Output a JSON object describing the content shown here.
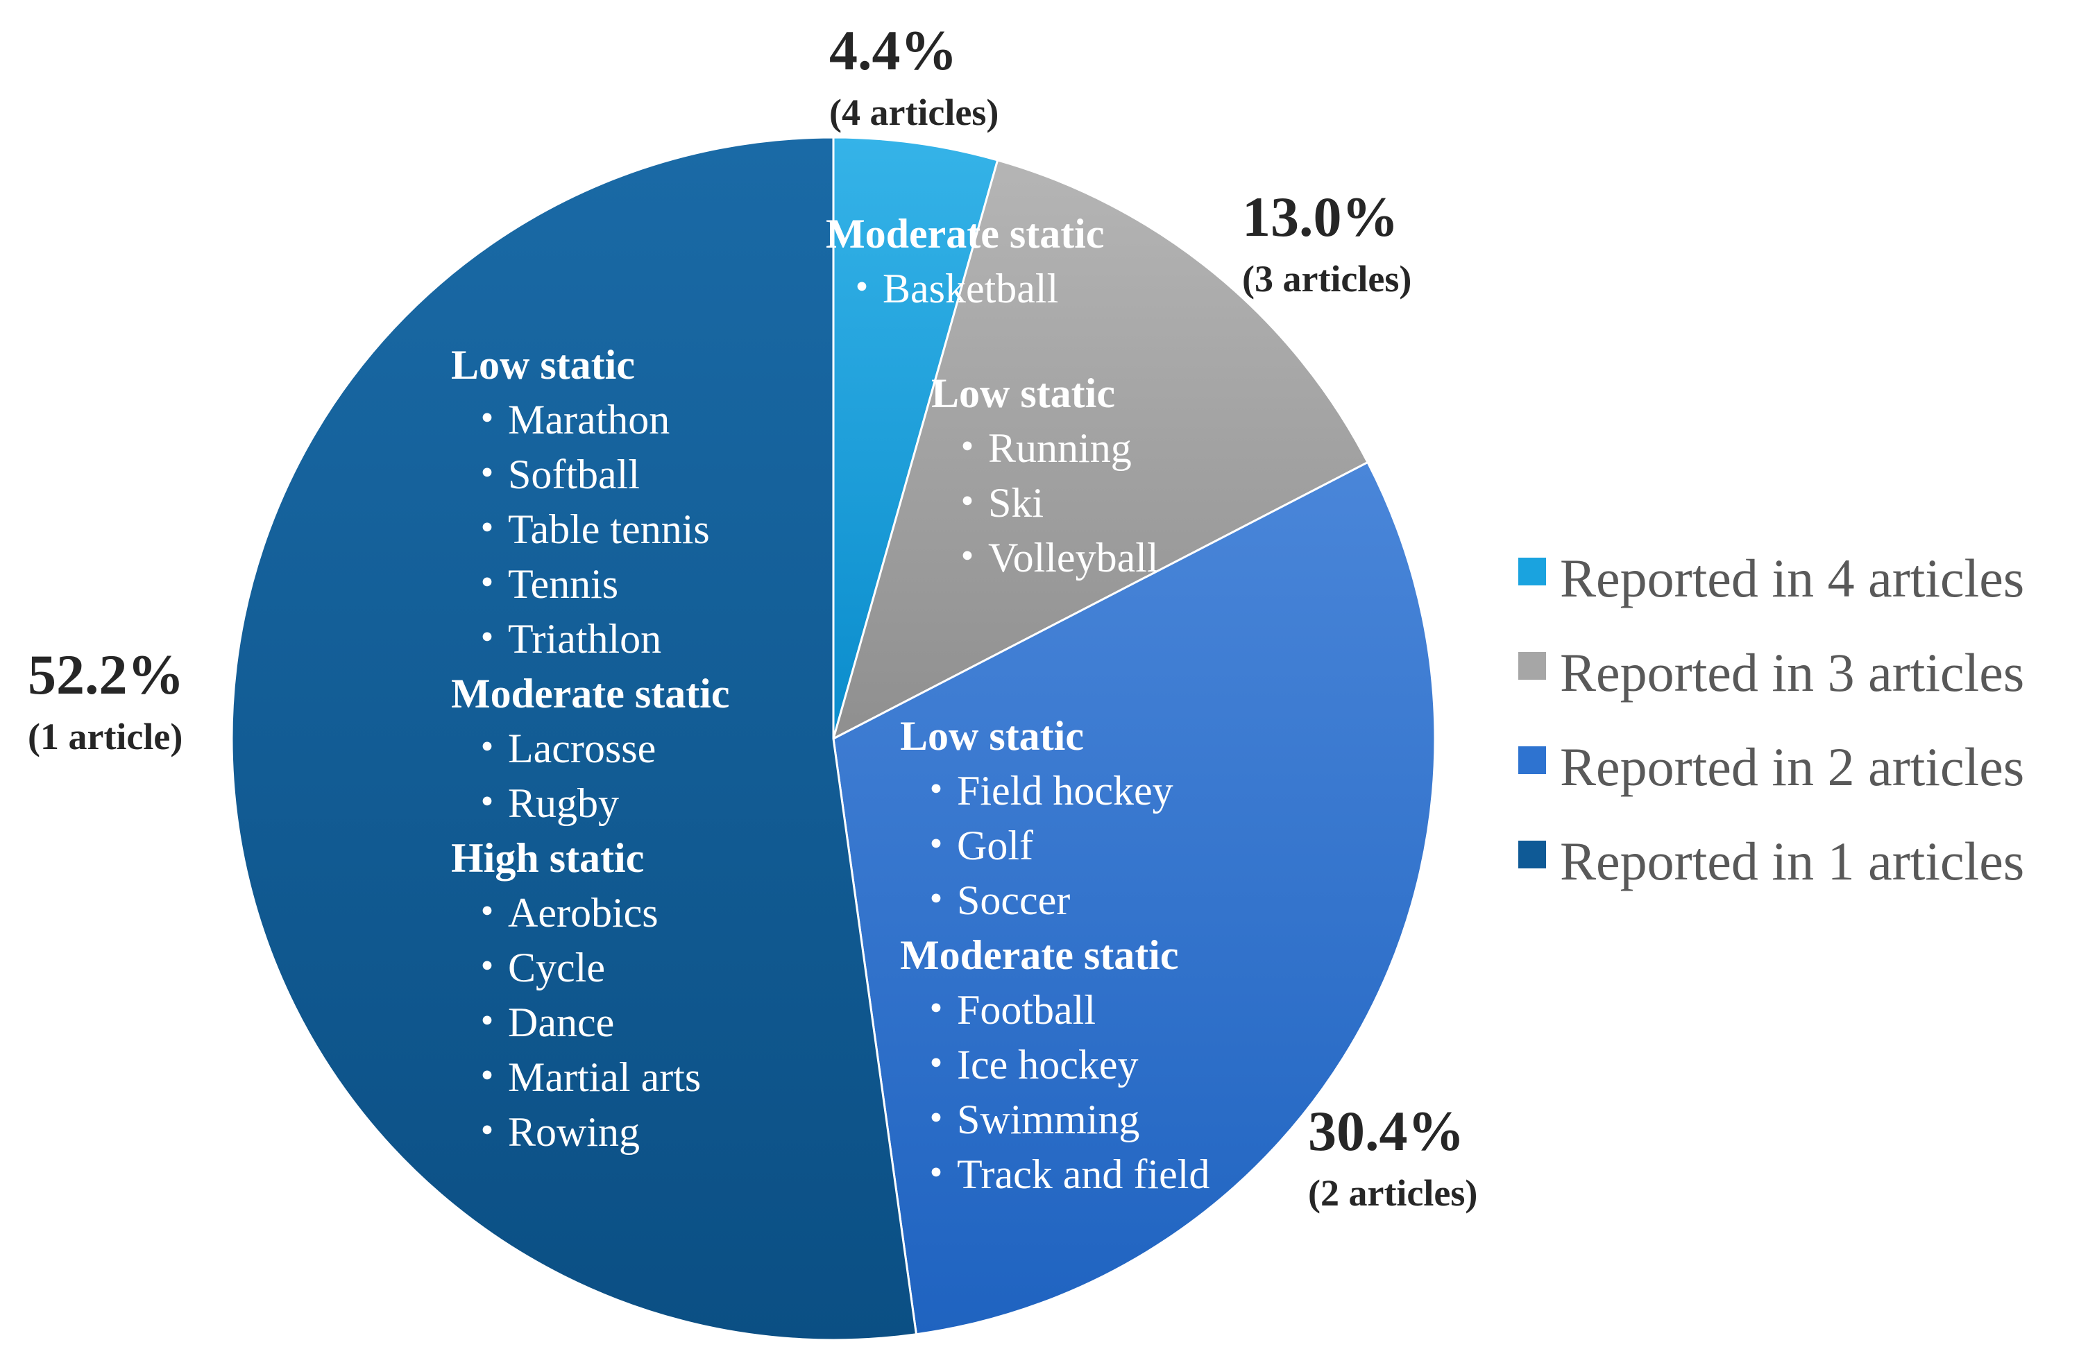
{
  "chart_data": {
    "type": "pie",
    "slices": [
      {
        "label": "Reported in 4 articles",
        "value": 4.4,
        "percent_label": "4.4%",
        "count_label": "(4 articles)",
        "color": "#1aa3df",
        "groups": [
          {
            "heading": "Moderate static",
            "items": [
              "・Basketball"
            ]
          }
        ]
      },
      {
        "label": "Reported in 3 articles",
        "value": 13.0,
        "percent_label": "13.0%",
        "count_label": "(3 articles)",
        "color": "#a6a6a6",
        "groups": [
          {
            "heading": "Low static",
            "items": [
              "・Running",
              "・Ski",
              "・Volleyball"
            ]
          }
        ]
      },
      {
        "label": "Reported in 2 articles",
        "value": 30.4,
        "percent_label": "30.4%",
        "count_label": "(2 articles)",
        "color": "#2e73d0",
        "groups": [
          {
            "heading": "Low static",
            "items": [
              "・Field hockey",
              "・Golf",
              "・Soccer"
            ]
          },
          {
            "heading": "Moderate static",
            "items": [
              "・Football",
              "・Ice hockey",
              "・Swimming",
              "・Track and field"
            ]
          }
        ]
      },
      {
        "label": "Reported in 1 articles",
        "value": 52.2,
        "percent_label": "52.2%",
        "count_label": "(1 article)",
        "color": "#0f5a96",
        "groups": [
          {
            "heading": "Low static",
            "items": [
              "・Marathon",
              "・Softball",
              "・Table tennis",
              "・Tennis",
              "・Triathlon"
            ]
          },
          {
            "heading": "Moderate static",
            "items": [
              "・Lacrosse",
              "・Rugby"
            ]
          },
          {
            "heading": "High static",
            "items": [
              "・Aerobics",
              "・Cycle",
              "・Dance",
              "・Martial arts",
              "・Rowing"
            ]
          }
        ]
      }
    ],
    "legend": {
      "position": "right",
      "entries": [
        "Reported in 4 articles",
        "Reported in 3 articles",
        "Reported in 2 articles",
        "Reported in 1 articles"
      ]
    }
  }
}
